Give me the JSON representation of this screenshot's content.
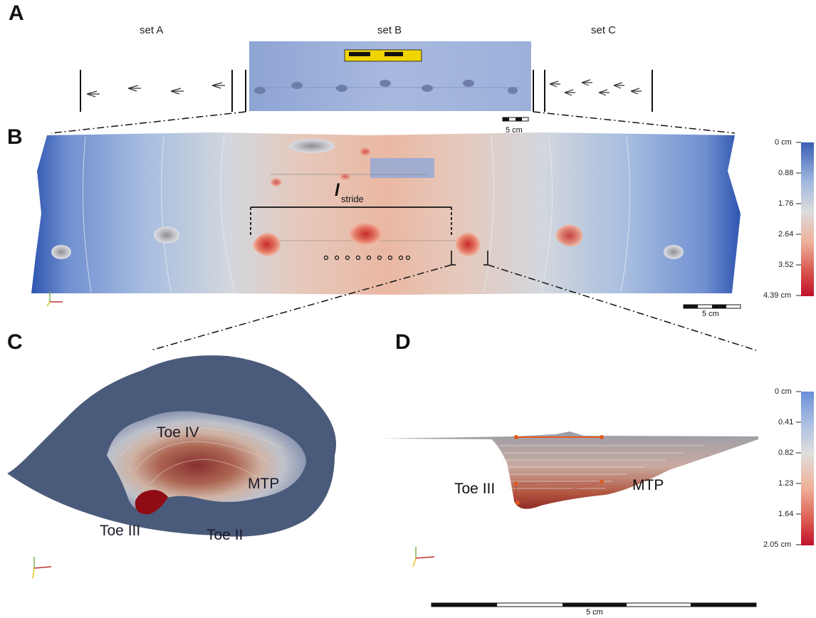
{
  "panels": {
    "a": "A",
    "b": "B",
    "c": "C",
    "d": "D"
  },
  "sets": [
    "set A",
    "set B",
    "set C"
  ],
  "scale_bars": {
    "a": "5 cm",
    "b": "5 cm",
    "d": "5 cm"
  },
  "stride": {
    "symbol": "l",
    "subscript": "stride"
  },
  "colorbar_b": {
    "ticks": [
      "0 cm",
      "0.88",
      "1.76",
      "2.64",
      "3.52",
      "4.39 cm"
    ]
  },
  "colorbar_d": {
    "ticks": [
      "0 cm",
      "0.41",
      "0.82",
      "1.23",
      "1.64",
      "2.05 cm"
    ]
  },
  "panel_c_labels": {
    "toe_iv": "Toe IV",
    "mtp": "MTP",
    "toe_iii": "Toe III",
    "toe_ii": "Toe II"
  },
  "panel_d_labels": {
    "toe_iii": "Toe III",
    "mtp": "MTP"
  },
  "colors": {
    "shallow": "#3a5fb5",
    "mid": "#dcdcdc",
    "deep": "#c0102a"
  }
}
